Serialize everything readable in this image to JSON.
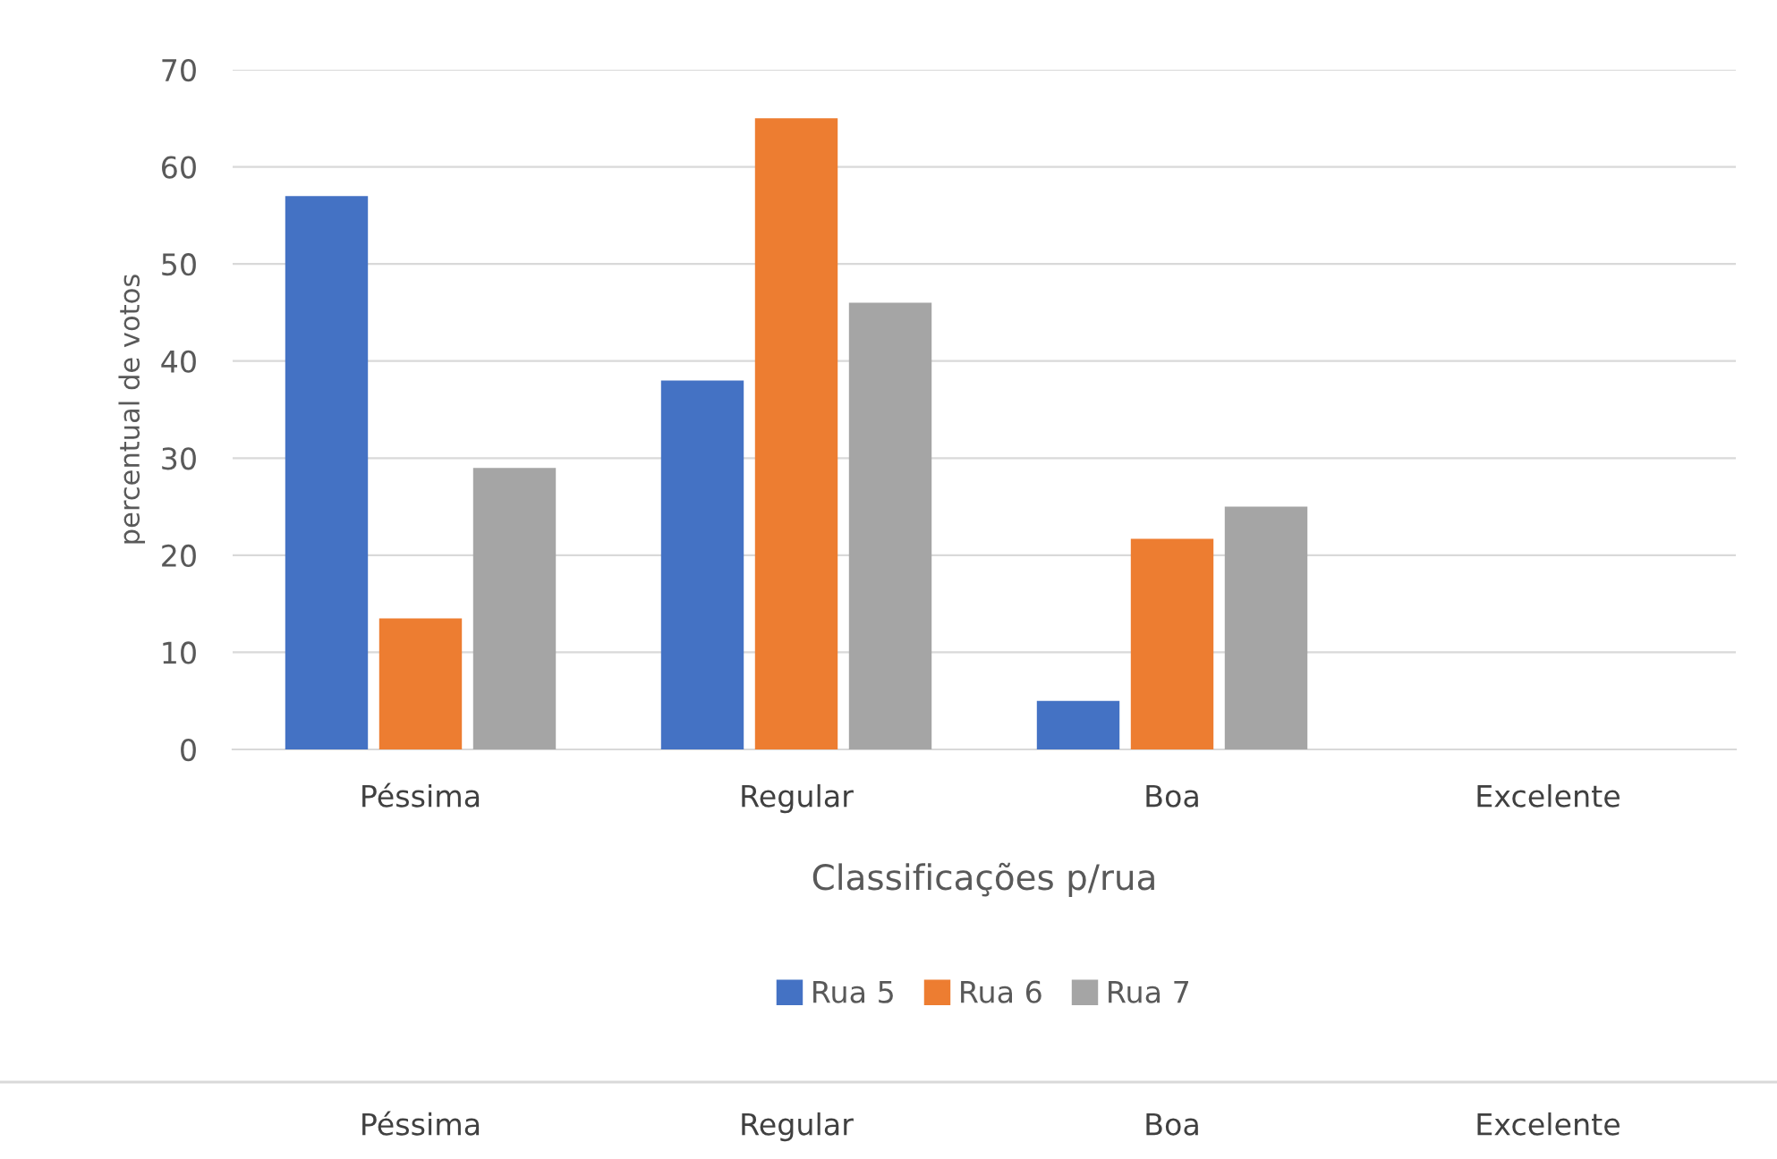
{
  "chart_data": {
    "type": "bar",
    "xlabel": "Classificações p/rua",
    "ylabel": "percentual de votos",
    "categories": [
      "Péssima",
      "Regular",
      "Boa",
      "Excelente"
    ],
    "series": [
      {
        "name": "Rua 5",
        "color": "#4472c4",
        "values": [
          57,
          38,
          5,
          0
        ]
      },
      {
        "name": "Rua 6",
        "color": "#ed7d31",
        "values": [
          13.5,
          65,
          21.7,
          0
        ]
      },
      {
        "name": "Rua 7",
        "color": "#a5a5a5",
        "values": [
          29,
          46,
          25,
          0
        ]
      }
    ],
    "ylim": [
      0,
      70
    ],
    "yticks": [
      0,
      10,
      20,
      30,
      40,
      50,
      60,
      70
    ],
    "grid": "y",
    "legend": "bottom",
    "annotations": [
      "Péssima",
      "Regular",
      "Boa",
      "Excelente"
    ]
  }
}
